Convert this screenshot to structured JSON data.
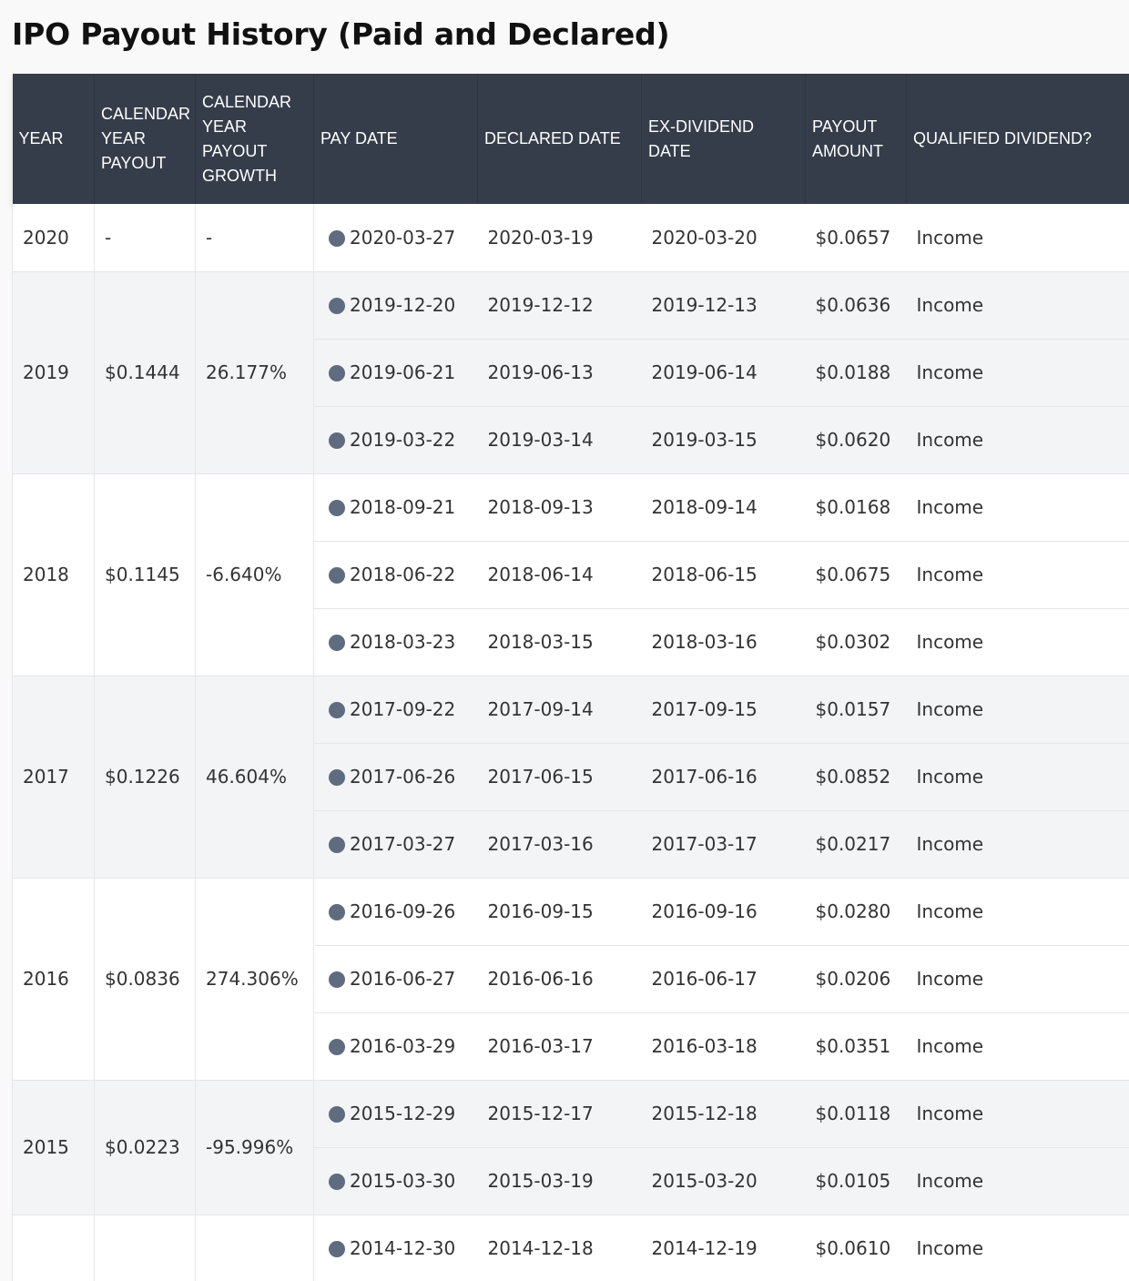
{
  "page": {
    "title": "IPO Payout History (Paid and Declared)"
  },
  "colors": {
    "header_bg": "#353d4a",
    "row_odd": "#ffffff",
    "row_even": "#f3f4f6",
    "dot": "#5f6b7e"
  },
  "table": {
    "headers": {
      "year": "YEAR",
      "calendar_year_payout": "CALENDAR YEAR PAYOUT",
      "calendar_year_payout_growth": "CALENDAR YEAR PAYOUT GROWTH",
      "pay_date": "PAY DATE",
      "declared_date": "DECLARED DATE",
      "ex_dividend_date": "EX-DIVIDEND DATE",
      "payout_amount": "PAYOUT AMOUNT",
      "qualified_dividend": "QUALIFIED DIVIDEND?"
    },
    "status_icon": "circle-status-icon",
    "groups": [
      {
        "year": "2020",
        "payout": "-",
        "growth": "-",
        "rows": [
          {
            "pay": "2020-03-27",
            "declared": "2020-03-19",
            "ex": "2020-03-20",
            "amount": "$0.0657",
            "qualified": "Income"
          }
        ]
      },
      {
        "year": "2019",
        "payout": "$0.1444",
        "growth": "26.177%",
        "rows": [
          {
            "pay": "2019-12-20",
            "declared": "2019-12-12",
            "ex": "2019-12-13",
            "amount": "$0.0636",
            "qualified": "Income"
          },
          {
            "pay": "2019-06-21",
            "declared": "2019-06-13",
            "ex": "2019-06-14",
            "amount": "$0.0188",
            "qualified": "Income"
          },
          {
            "pay": "2019-03-22",
            "declared": "2019-03-14",
            "ex": "2019-03-15",
            "amount": "$0.0620",
            "qualified": "Income"
          }
        ]
      },
      {
        "year": "2018",
        "payout": "$0.1145",
        "growth": "-6.640%",
        "rows": [
          {
            "pay": "2018-09-21",
            "declared": "2018-09-13",
            "ex": "2018-09-14",
            "amount": "$0.0168",
            "qualified": "Income"
          },
          {
            "pay": "2018-06-22",
            "declared": "2018-06-14",
            "ex": "2018-06-15",
            "amount": "$0.0675",
            "qualified": "Income"
          },
          {
            "pay": "2018-03-23",
            "declared": "2018-03-15",
            "ex": "2018-03-16",
            "amount": "$0.0302",
            "qualified": "Income"
          }
        ]
      },
      {
        "year": "2017",
        "payout": "$0.1226",
        "growth": "46.604%",
        "rows": [
          {
            "pay": "2017-09-22",
            "declared": "2017-09-14",
            "ex": "2017-09-15",
            "amount": "$0.0157",
            "qualified": "Income"
          },
          {
            "pay": "2017-06-26",
            "declared": "2017-06-15",
            "ex": "2017-06-16",
            "amount": "$0.0852",
            "qualified": "Income"
          },
          {
            "pay": "2017-03-27",
            "declared": "2017-03-16",
            "ex": "2017-03-17",
            "amount": "$0.0217",
            "qualified": "Income"
          }
        ]
      },
      {
        "year": "2016",
        "payout": "$0.0836",
        "growth": "274.306%",
        "rows": [
          {
            "pay": "2016-09-26",
            "declared": "2016-09-15",
            "ex": "2016-09-16",
            "amount": "$0.0280",
            "qualified": "Income"
          },
          {
            "pay": "2016-06-27",
            "declared": "2016-06-16",
            "ex": "2016-06-17",
            "amount": "$0.0206",
            "qualified": "Income"
          },
          {
            "pay": "2016-03-29",
            "declared": "2016-03-17",
            "ex": "2016-03-18",
            "amount": "$0.0351",
            "qualified": "Income"
          }
        ]
      },
      {
        "year": "2015",
        "payout": "$0.0223",
        "growth": "-95.996%",
        "rows": [
          {
            "pay": "2015-12-29",
            "declared": "2015-12-17",
            "ex": "2015-12-18",
            "amount": "$0.0118",
            "qualified": "Income"
          },
          {
            "pay": "2015-03-30",
            "declared": "2015-03-19",
            "ex": "2015-03-20",
            "amount": "$0.0105",
            "qualified": "Income"
          }
        ]
      },
      {
        "year": "",
        "payout": "",
        "growth": "",
        "rows": [
          {
            "pay": "2014-12-30",
            "declared": "2014-12-18",
            "ex": "2014-12-19",
            "amount": "$0.0610",
            "qualified": "Income"
          }
        ]
      }
    ]
  }
}
